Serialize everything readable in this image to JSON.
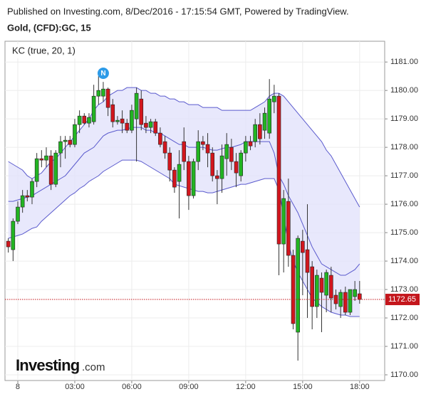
{
  "header": {
    "published": "Published on Investing.com, 8/Dec/2016 - 17:15:54 GMT, Powered by TradingView.",
    "symbol": "Gold, (CFD):GC, 15",
    "logo": "Investing",
    "logo_suffix": ".com"
  },
  "chart_data": {
    "type": "candlestick",
    "indicator_label": "KC (true, 20, 1)",
    "event_marker": "N",
    "last_price": 1172.65,
    "x": [
      -0.5,
      -0.25,
      0,
      0.25,
      0.5,
      0.75,
      1,
      1.25,
      1.5,
      1.75,
      2,
      2.25,
      2.5,
      2.75,
      3,
      3.25,
      3.5,
      3.75,
      4,
      4.25,
      4.5,
      4.75,
      5,
      5.25,
      5.5,
      5.75,
      6,
      6.25,
      6.5,
      6.75,
      7,
      7.25,
      7.5,
      7.75,
      8,
      8.25,
      8.5,
      8.75,
      9,
      9.25,
      9.5,
      9.75,
      10,
      10.25,
      10.5,
      10.75,
      11,
      11.25,
      11.5,
      11.75,
      12,
      12.25,
      12.5,
      12.75,
      13,
      13.25,
      13.5,
      13.75,
      14,
      14.25,
      14.5,
      14.75,
      15,
      15.25,
      15.5,
      15.75,
      16,
      16.25,
      16.5,
      16.75,
      17,
      17.25,
      17.5,
      17.75,
      18
    ],
    "open": [
      1174.7,
      1174.4,
      1175.4,
      1175.9,
      1176.3,
      1176.25,
      1176.8,
      1177.6,
      1177.55,
      1177.7,
      1176.7,
      1177.8,
      1178.2,
      1178.25,
      1178.1,
      1178.8,
      1179.1,
      1178.85,
      1178.9,
      1179.8,
      1179.8,
      1180.05,
      1179.5,
      1178.9,
      1179.0,
      1178.85,
      1178.6,
      1179.0,
      1179.7,
      1178.85,
      1178.7,
      1178.9,
      1178.5,
      1178.2,
      1177.8,
      1177.2,
      1176.8,
      1178.2,
      1177.5,
      1176.3,
      1177.5,
      1178.2,
      1178.1,
      1177.8,
      1177.0,
      1176.9,
      1177.6,
      1178.0,
      1177.5,
      1177.0,
      1177.8,
      1178.2,
      1178.2,
      1178.8,
      1178.6,
      1178.5,
      1179.6,
      1179.8,
      1174.6,
      1176.1,
      1174.2,
      1171.5,
      1174.7,
      1174.4,
      1173.8,
      1172.4,
      1173.4,
      1172.8,
      1173.5,
      1172.8,
      1172.4,
      1172.9,
      1172.2,
      1172.75,
      1172.85
    ],
    "high": [
      1174.8,
      1175.5,
      1176.1,
      1176.5,
      1176.5,
      1176.9,
      1177.8,
      1177.9,
      1178.0,
      1177.9,
      1177.9,
      1178.4,
      1178.4,
      1178.4,
      1179.0,
      1179.3,
      1179.2,
      1179.2,
      1180.2,
      1180.5,
      1180.3,
      1180.1,
      1179.7,
      1179.1,
      1179.3,
      1179.0,
      1179.5,
      1180.1,
      1180.0,
      1179.1,
      1179.0,
      1179.0,
      1178.7,
      1178.4,
      1178.0,
      1177.3,
      1177.9,
      1178.7,
      1177.7,
      1177.6,
      1178.6,
      1178.4,
      1178.5,
      1178.0,
      1177.2,
      1178.1,
      1178.5,
      1178.3,
      1177.8,
      1177.9,
      1178.4,
      1178.4,
      1179.0,
      1179.2,
      1179.4,
      1180.4,
      1180.2,
      1179.9,
      1176.5,
      1176.9,
      1174.4,
      1174.9,
      1175.1,
      1176.0,
      1174.0,
      1173.7,
      1173.6,
      1173.7,
      1173.8,
      1173.0,
      1173.0,
      1173.1,
      1173.0,
      1173.3,
      1173.3
    ],
    "low": [
      1174.3,
      1174.0,
      1175.3,
      1175.7,
      1176.1,
      1176.0,
      1176.6,
      1177.3,
      1177.3,
      1176.5,
      1176.6,
      1177.3,
      1177.6,
      1178.0,
      1178.0,
      1178.5,
      1178.8,
      1178.7,
      1178.8,
      1179.5,
      1179.6,
      1179.1,
      1178.7,
      1178.8,
      1178.5,
      1178.5,
      1178.5,
      1177.5,
      1178.6,
      1178.5,
      1178.5,
      1178.4,
      1178.0,
      1177.6,
      1176.8,
      1176.4,
      1175.5,
      1177.2,
      1175.8,
      1176.2,
      1177.2,
      1177.9,
      1177.3,
      1176.8,
      1176.0,
      1176.4,
      1177.0,
      1177.2,
      1176.6,
      1176.8,
      1177.5,
      1177.9,
      1178.0,
      1178.1,
      1178.3,
      1178.3,
      1179.2,
      1173.5,
      1173.6,
      1173.8,
      1171.6,
      1170.5,
      1172.8,
      1172.0,
      1171.6,
      1172.0,
      1171.5,
      1172.2,
      1172.2,
      1172.3,
      1172.0,
      1172.1,
      1172.1,
      1172.6,
      1172.5
    ],
    "close": [
      1174.5,
      1175.4,
      1175.9,
      1176.3,
      1176.25,
      1176.8,
      1177.6,
      1177.55,
      1177.7,
      1176.7,
      1177.8,
      1178.2,
      1178.25,
      1178.1,
      1178.8,
      1179.1,
      1178.85,
      1179.05,
      1179.8,
      1180.0,
      1180.05,
      1179.4,
      1178.9,
      1178.95,
      1178.85,
      1178.6,
      1179.3,
      1179.9,
      1178.8,
      1178.7,
      1178.9,
      1178.5,
      1178.1,
      1177.8,
      1177.2,
      1176.6,
      1177.4,
      1177.5,
      1176.3,
      1177.5,
      1178.2,
      1178.1,
      1177.8,
      1177.0,
      1176.9,
      1177.7,
      1178.1,
      1177.5,
      1177.1,
      1177.8,
      1178.2,
      1178.05,
      1178.8,
      1178.3,
      1179.2,
      1179.7,
      1179.8,
      1174.6,
      1176.2,
      1174.2,
      1171.8,
      1174.8,
      1174.3,
      1173.6,
      1172.4,
      1173.5,
      1172.9,
      1173.6,
      1172.7,
      1172.5,
      1172.9,
      1172.2,
      1173.0,
      1173.0,
      1172.65
    ],
    "upper": [
      1177.5,
      1177.4,
      1177.3,
      1177.2,
      1177.0,
      1176.9,
      1177.0,
      1177.1,
      1177.3,
      1177.5,
      1177.6,
      1177.8,
      1178.0,
      1178.2,
      1178.4,
      1178.6,
      1178.8,
      1179.0,
      1179.3,
      1179.5,
      1179.6,
      1179.8,
      1179.9,
      1180.0,
      1180.0,
      1180.1,
      1180.1,
      1180.1,
      1180.0,
      1180.0,
      1179.9,
      1179.9,
      1179.8,
      1179.8,
      1179.7,
      1179.7,
      1179.6,
      1179.6,
      1179.5,
      1179.5,
      1179.5,
      1179.4,
      1179.4,
      1179.4,
      1179.4,
      1179.3,
      1179.3,
      1179.3,
      1179.3,
      1179.3,
      1179.3,
      1179.3,
      1179.4,
      1179.5,
      1179.6,
      1179.8,
      1179.9,
      1179.9,
      1179.8,
      1179.6,
      1179.4,
      1179.2,
      1179.0,
      1178.8,
      1178.6,
      1178.4,
      1178.2,
      1177.9,
      1177.7,
      1177.4,
      1177.1,
      1176.8,
      1176.5,
      1176.2,
      1175.9
    ],
    "middle": [
      1176.1,
      1176.1,
      1176.15,
      1176.2,
      1176.25,
      1176.3,
      1176.4,
      1176.5,
      1176.6,
      1176.7,
      1176.8,
      1176.9,
      1177.0,
      1177.2,
      1177.4,
      1177.6,
      1177.8,
      1177.9,
      1178.0,
      1178.2,
      1178.4,
      1178.5,
      1178.55,
      1178.6,
      1178.6,
      1178.65,
      1178.7,
      1178.7,
      1178.7,
      1178.6,
      1178.6,
      1178.5,
      1178.5,
      1178.4,
      1178.3,
      1178.2,
      1178.1,
      1178.1,
      1178.0,
      1178.0,
      1178.0,
      1178.0,
      1177.95,
      1177.9,
      1177.9,
      1177.95,
      1178.0,
      1178.0,
      1178.05,
      1178.1,
      1178.2,
      1178.2,
      1178.2,
      1178.2,
      1178.2,
      1178.2,
      1177.8,
      1177.0,
      1176.7,
      1176.3,
      1176.0,
      1175.7,
      1175.3,
      1174.9,
      1174.5,
      1174.2,
      1173.9,
      1173.8,
      1173.7,
      1173.6,
      1173.5,
      1173.5,
      1173.6,
      1173.7,
      1173.9
    ],
    "lower": [
      1174.8,
      1174.85,
      1174.9,
      1174.95,
      1175.05,
      1175.15,
      1175.2,
      1175.4,
      1175.55,
      1175.7,
      1175.85,
      1176.0,
      1176.15,
      1176.3,
      1176.4,
      1176.55,
      1176.65,
      1176.8,
      1176.9,
      1177.0,
      1177.15,
      1177.25,
      1177.35,
      1177.45,
      1177.55,
      1177.55,
      1177.55,
      1177.55,
      1177.5,
      1177.4,
      1177.3,
      1177.2,
      1177.1,
      1177.0,
      1176.9,
      1176.7,
      1176.65,
      1176.6,
      1176.55,
      1176.5,
      1176.45,
      1176.45,
      1176.4,
      1176.4,
      1176.45,
      1176.5,
      1176.55,
      1176.6,
      1176.65,
      1176.7,
      1176.7,
      1176.75,
      1176.8,
      1176.85,
      1176.9,
      1176.9,
      1176.9,
      1176.5,
      1175.6,
      1174.6,
      1174.0,
      1173.6,
      1173.3,
      1173.0,
      1172.7,
      1172.55,
      1172.4,
      1172.3,
      1172.2,
      1172.15,
      1172.1,
      1172.1,
      1172.05,
      1172.05,
      1172.05
    ],
    "event_x": 4.5,
    "xlim": [
      -0.675,
      19.32
    ],
    "ylim": [
      1169.8,
      1181.73
    ],
    "xticks": [
      {
        "value": 0,
        "label": "8"
      },
      {
        "value": 3,
        "label": "03:00"
      },
      {
        "value": 6,
        "label": "06:00"
      },
      {
        "value": 9,
        "label": "09:00"
      },
      {
        "value": 12,
        "label": "12:00"
      },
      {
        "value": 15,
        "label": "15:00"
      },
      {
        "value": 18,
        "label": "18:00"
      }
    ],
    "yticks": [
      {
        "value": 1170,
        "label": "1170.00"
      },
      {
        "value": 1171,
        "label": "1171.00"
      },
      {
        "value": 1172,
        "label": "1172.00"
      },
      {
        "value": 1173,
        "label": "1173.00"
      },
      {
        "value": 1174,
        "label": "1174.00"
      },
      {
        "value": 1175,
        "label": "1175.00"
      },
      {
        "value": 1176,
        "label": "1176.00"
      },
      {
        "value": 1177,
        "label": "1177.00"
      },
      {
        "value": 1178,
        "label": "1178.00"
      },
      {
        "value": 1179,
        "label": "1179.00"
      },
      {
        "value": 1180,
        "label": "1180.00"
      },
      {
        "value": 1181,
        "label": "1181.00"
      }
    ],
    "grid": true,
    "up_color": "#22b422",
    "down_color": "#d2161e",
    "band_color": "#5a5acd",
    "band_fill": "#e2e2fb",
    "last_color": "#c4161c"
  }
}
